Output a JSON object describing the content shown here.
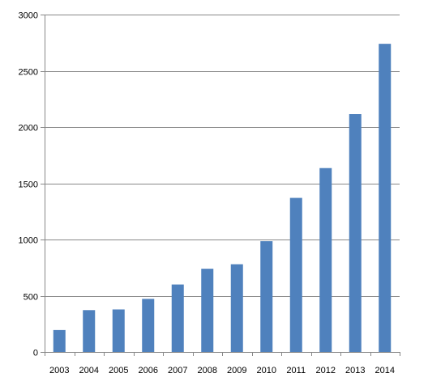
{
  "chart_data": {
    "type": "bar",
    "categories": [
      "2003",
      "2004",
      "2005",
      "2006",
      "2007",
      "2008",
      "2009",
      "2010",
      "2011",
      "2012",
      "2013",
      "2014"
    ],
    "values": [
      195,
      372,
      378,
      472,
      600,
      740,
      780,
      985,
      1370,
      1635,
      2115,
      2740
    ],
    "ylim": [
      0,
      3000
    ],
    "yticks": [
      0,
      500,
      1000,
      1500,
      2000,
      2500,
      3000
    ],
    "grid": true,
    "legend": "none",
    "title": "",
    "xlabel": "",
    "ylabel": "",
    "bar_color": "#4f81bd"
  }
}
